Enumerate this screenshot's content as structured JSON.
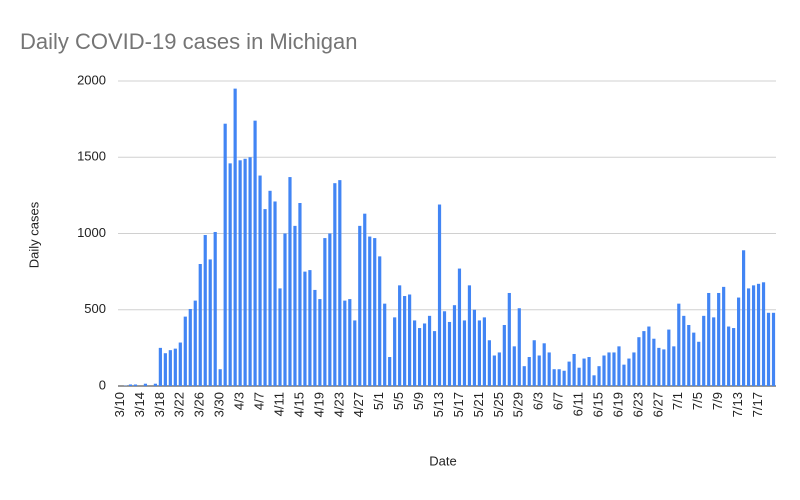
{
  "chart_data": {
    "type": "bar",
    "title": "Daily COVID-19 cases in Michigan",
    "x_label": "Date",
    "y_label": "Daily cases",
    "categories": [
      "3/10",
      null,
      null,
      null,
      "3/14",
      null,
      null,
      null,
      "3/18",
      null,
      null,
      null,
      "3/22",
      null,
      null,
      null,
      "3/26",
      null,
      null,
      null,
      "3/30",
      null,
      null,
      null,
      "4/3",
      null,
      null,
      null,
      "4/7",
      null,
      null,
      null,
      "4/11",
      null,
      null,
      null,
      "4/15",
      null,
      null,
      null,
      "4/19",
      null,
      null,
      null,
      "4/23",
      null,
      null,
      null,
      "4/27",
      null,
      null,
      null,
      "5/1",
      null,
      null,
      null,
      "5/5",
      null,
      null,
      null,
      "5/9",
      null,
      null,
      null,
      "5/13",
      null,
      null,
      null,
      "5/17",
      null,
      null,
      null,
      "5/21",
      null,
      null,
      null,
      "5/25",
      null,
      null,
      null,
      "5/29",
      null,
      null,
      null,
      "6/3",
      null,
      null,
      null,
      "6/7",
      null,
      null,
      null,
      "6/11",
      null,
      null,
      null,
      "6/15",
      null,
      null,
      null,
      "6/19",
      null,
      null,
      null,
      "6/23",
      null,
      null,
      null,
      "6/27",
      null,
      null,
      null,
      "7/1",
      null,
      null,
      null,
      "7/5",
      null,
      null,
      null,
      "7/9",
      null,
      null,
      null,
      "7/13",
      null,
      null,
      null,
      "7/17",
      null,
      null,
      null
    ],
    "values": [
      0,
      2,
      10,
      10,
      0,
      15,
      0,
      15,
      250,
      215,
      235,
      245,
      285,
      455,
      505,
      560,
      800,
      990,
      830,
      1010,
      110,
      1720,
      1460,
      1950,
      1480,
      1490,
      1500,
      1740,
      1380,
      1160,
      1280,
      1210,
      640,
      1000,
      1370,
      1050,
      1200,
      750,
      760,
      630,
      570,
      970,
      1000,
      1330,
      1350,
      560,
      570,
      430,
      1050,
      1130,
      980,
      970,
      850,
      540,
      190,
      450,
      660,
      590,
      600,
      430,
      380,
      410,
      460,
      360,
      1190,
      490,
      420,
      530,
      770,
      430,
      660,
      500,
      430,
      450,
      300,
      200,
      220,
      400,
      610,
      260,
      510,
      130,
      190,
      300,
      200,
      280,
      220,
      110,
      110,
      100,
      160,
      210,
      120,
      180,
      190,
      70,
      130,
      200,
      220,
      220,
      260,
      140,
      180,
      220,
      320,
      360,
      390,
      310,
      250,
      240,
      370,
      260,
      540,
      460,
      400,
      350,
      290,
      460,
      610,
      450,
      610,
      650,
      390,
      380,
      580,
      890,
      640,
      660,
      670,
      680,
      480,
      480
    ],
    "color": "#4285f4",
    "ylim": [
      0,
      2000
    ],
    "yticks": [
      0,
      500,
      1000,
      1500,
      2000
    ],
    "grid": true
  }
}
